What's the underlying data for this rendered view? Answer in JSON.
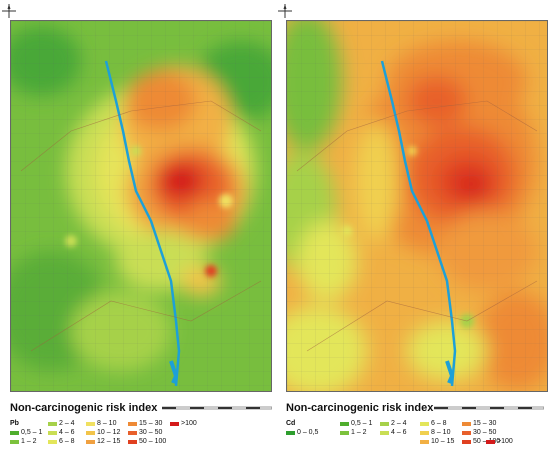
{
  "left_panel": {
    "title": "Non-carcinogenic risk index",
    "metal": "Pb",
    "legend": [
      {
        "label": "<0,5",
        "color": "#2e9e2e"
      },
      {
        "label": "0,5 – 1",
        "color": "#4fae2e"
      },
      {
        "label": "1 – 2",
        "color": "#7cc23c"
      },
      {
        "label": "2 – 4",
        "color": "#a6d14a"
      },
      {
        "label": "4 – 6",
        "color": "#c9de54"
      },
      {
        "label": "6 – 8",
        "color": "#e3e65a"
      },
      {
        "label": "8 – 10",
        "color": "#f0e060"
      },
      {
        "label": "10 – 12",
        "color": "#f2c44a"
      },
      {
        "label": "12 – 15",
        "color": "#f0a040"
      },
      {
        "label": "15 – 30",
        "color": "#ee8a36"
      },
      {
        "label": "30 – 50",
        "color": "#e8602c"
      },
      {
        "label": "50 – 100",
        "color": "#e04020"
      },
      {
        "label": ">100",
        "color": "#d41a1a"
      }
    ]
  },
  "right_panel": {
    "title": "Non-carcinogenic risk index",
    "metal": "Cd",
    "legend": [
      {
        "label": "0 – 0,5",
        "color": "#2e9e2e"
      },
      {
        "label": "0,5 – 1",
        "color": "#4fae2e"
      },
      {
        "label": "1 – 2",
        "color": "#7cc23c"
      },
      {
        "label": "2 – 4",
        "color": "#a6d14a"
      },
      {
        "label": "4 – 6",
        "color": "#c9de54"
      },
      {
        "label": "6 – 8",
        "color": "#e3e65a"
      },
      {
        "label": "8 – 10",
        "color": "#f0d050"
      },
      {
        "label": "10 – 15",
        "color": "#f2b044"
      },
      {
        "label": "15 – 30",
        "color": "#ee8a36"
      },
      {
        "label": "30 – 50",
        "color": "#e8602c"
      },
      {
        "label": "50 – 100",
        "color": "#e04020"
      },
      {
        "label": ">100",
        "color": "#d41a1a"
      }
    ]
  }
}
